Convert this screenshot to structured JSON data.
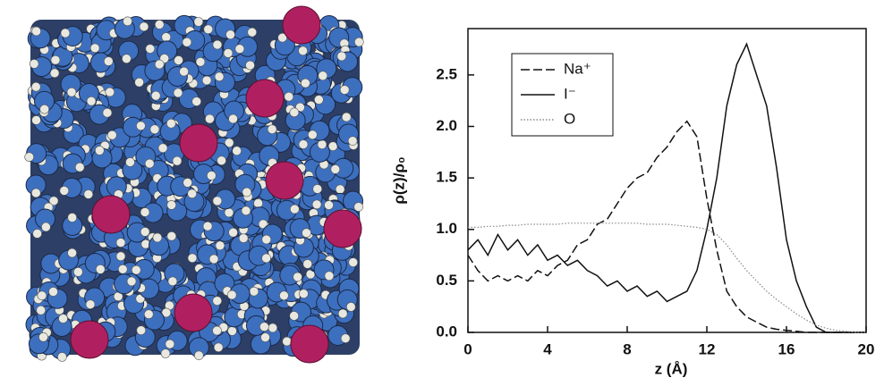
{
  "chart_data": {
    "type": "line",
    "ylabel": "ρ(z)/ρ₀",
    "xlabel": "z (Å)",
    "x": [
      0,
      0.5,
      1,
      1.5,
      2,
      2.5,
      3,
      3.5,
      4,
      4.5,
      5,
      5.5,
      6,
      6.5,
      7,
      7.5,
      8,
      8.5,
      9,
      9.5,
      10,
      10.5,
      11,
      11.5,
      12,
      12.5,
      13,
      13.5,
      14,
      14.5,
      15,
      15.5,
      16,
      16.5,
      17,
      17.5,
      18,
      18.5,
      19,
      19.5,
      20
    ],
    "series": [
      {
        "name": "Na⁺",
        "color": "#111111",
        "style": "dashed",
        "values": [
          0.75,
          0.6,
          0.5,
          0.55,
          0.5,
          0.55,
          0.5,
          0.6,
          0.55,
          0.65,
          0.7,
          0.85,
          0.9,
          1.05,
          1.1,
          1.25,
          1.4,
          1.5,
          1.55,
          1.7,
          1.8,
          1.95,
          2.05,
          1.9,
          1.3,
          0.8,
          0.4,
          0.25,
          0.15,
          0.1,
          0.05,
          0.03,
          0.02,
          0.01,
          0,
          0,
          0,
          0,
          0,
          0,
          0
        ]
      },
      {
        "name": "I⁻",
        "color": "#111111",
        "style": "solid",
        "values": [
          0.8,
          0.9,
          0.75,
          0.95,
          0.8,
          0.9,
          0.75,
          0.85,
          0.7,
          0.75,
          0.65,
          0.7,
          0.6,
          0.55,
          0.45,
          0.5,
          0.4,
          0.45,
          0.35,
          0.4,
          0.3,
          0.35,
          0.4,
          0.6,
          1.0,
          1.5,
          2.2,
          2.6,
          2.8,
          2.5,
          2.2,
          1.6,
          0.9,
          0.5,
          0.25,
          0.05,
          0,
          0,
          0,
          0,
          0
        ]
      },
      {
        "name": "O",
        "color": "#8a8a8a",
        "style": "dotted",
        "values": [
          1.02,
          1.02,
          1.03,
          1.03,
          1.04,
          1.04,
          1.05,
          1.05,
          1.05,
          1.05,
          1.06,
          1.06,
          1.06,
          1.06,
          1.06,
          1.06,
          1.06,
          1.06,
          1.05,
          1.05,
          1.05,
          1.04,
          1.03,
          1.02,
          1.0,
          0.95,
          0.85,
          0.72,
          0.6,
          0.5,
          0.4,
          0.32,
          0.25,
          0.18,
          0.12,
          0.07,
          0.04,
          0.02,
          0.01,
          0,
          0
        ]
      }
    ],
    "xlim": [
      0,
      20
    ],
    "xticks": [
      0,
      4,
      8,
      12,
      16,
      20
    ],
    "ylim": [
      0,
      2.95
    ],
    "yticks": [
      {
        "value": 0,
        "label": "0.0"
      },
      0.5,
      {
        "value": 1,
        "label": "1.0"
      },
      1.5,
      {
        "value": 2,
        "label": "2.0"
      },
      2.5
    ],
    "legend": "upper-left"
  }
}
